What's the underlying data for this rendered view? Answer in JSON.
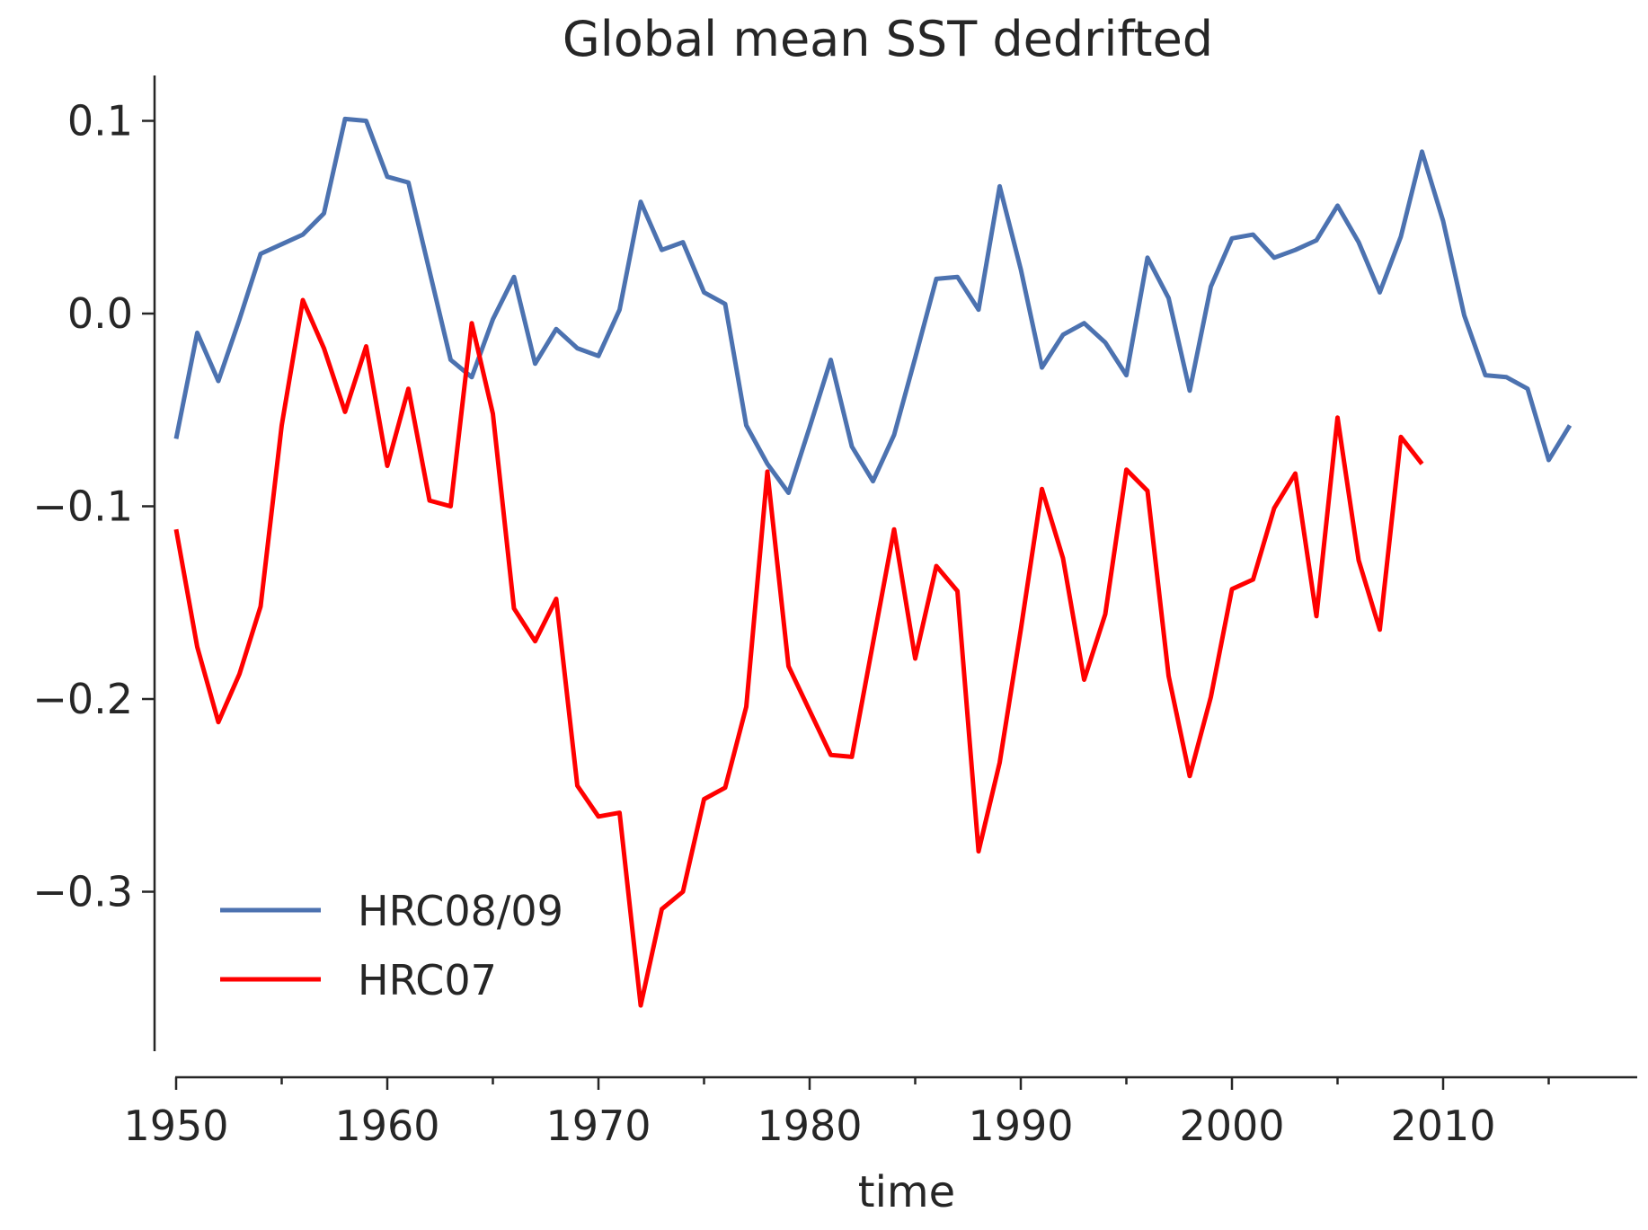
{
  "chart_data": {
    "type": "line",
    "title": "Global mean SST dedrifted",
    "xlabel": "time",
    "ylabel": "",
    "xlim": [
      1949.0,
      2019.0
    ],
    "ylim": [
      -0.38,
      0.125
    ],
    "xticks": [
      1950,
      1960,
      1970,
      1980,
      1990,
      2000,
      2010
    ],
    "xticks_minor": [
      1955,
      1965,
      1975,
      1985,
      1995,
      2005,
      2015
    ],
    "xtick_labels": [
      "1950",
      "1960",
      "1970",
      "1980",
      "1990",
      "2000",
      "2010"
    ],
    "yticks": [
      0.1,
      0.0,
      -0.1,
      -0.2,
      -0.3
    ],
    "ytick_labels": [
      "0.1",
      "0.0",
      "−0.1",
      "−0.2",
      "−0.3"
    ],
    "grid": false,
    "legend_position": "lower-left",
    "series": [
      {
        "name": "HRC08/09",
        "color": "#4c72b0",
        "x": [
          1950,
          1951,
          1952,
          1953,
          1954,
          1955,
          1956,
          1957,
          1958,
          1959,
          1960,
          1961,
          1962,
          1963,
          1964,
          1965,
          1966,
          1967,
          1968,
          1969,
          1970,
          1971,
          1972,
          1973,
          1974,
          1975,
          1976,
          1977,
          1978,
          1979,
          1980,
          1981,
          1982,
          1983,
          1984,
          1985,
          1986,
          1987,
          1988,
          1989,
          1990,
          1991,
          1992,
          1993,
          1994,
          1995,
          1996,
          1997,
          1998,
          1999,
          2000,
          2001,
          2002,
          2003,
          2004,
          2005,
          2006,
          2007,
          2008,
          2009,
          2010,
          2011,
          2012,
          2013,
          2014,
          2015,
          2016
        ],
        "y": [
          -0.065,
          -0.01,
          -0.035,
          -0.003,
          0.031,
          0.036,
          0.041,
          0.052,
          0.101,
          0.1,
          0.071,
          0.068,
          0.022,
          -0.024,
          -0.033,
          -0.003,
          0.019,
          -0.026,
          -0.008,
          -0.018,
          -0.022,
          0.002,
          0.058,
          0.033,
          0.037,
          0.011,
          0.005,
          -0.058,
          -0.078,
          -0.093,
          -0.059,
          -0.024,
          -0.069,
          -0.087,
          -0.063,
          -0.023,
          0.018,
          0.019,
          0.002,
          0.066,
          0.023,
          -0.028,
          -0.011,
          -0.005,
          -0.015,
          -0.032,
          0.029,
          0.008,
          -0.04,
          0.014,
          0.039,
          0.041,
          0.029,
          0.033,
          0.038,
          0.056,
          0.037,
          0.011,
          0.04,
          0.084,
          0.048,
          -0.001,
          -0.032,
          -0.033,
          -0.039,
          -0.076,
          -0.058
        ]
      },
      {
        "name": "HRC07",
        "color": "#ff0000",
        "x": [
          1950,
          1951,
          1952,
          1953,
          1954,
          1955,
          1956,
          1957,
          1958,
          1959,
          1960,
          1961,
          1962,
          1963,
          1964,
          1965,
          1966,
          1967,
          1968,
          1969,
          1970,
          1971,
          1972,
          1973,
          1974,
          1975,
          1976,
          1977,
          1978,
          1979,
          1980,
          1981,
          1982,
          1983,
          1984,
          1985,
          1986,
          1987,
          1988,
          1989,
          1990,
          1991,
          1992,
          1993,
          1994,
          1995,
          1996,
          1997,
          1998,
          1999,
          2000,
          2001,
          2002,
          2003,
          2004,
          2005,
          2006,
          2007,
          2008,
          2009
        ],
        "y": [
          -0.112,
          -0.173,
          -0.212,
          -0.187,
          -0.152,
          -0.058,
          0.007,
          -0.018,
          -0.051,
          -0.017,
          -0.079,
          -0.039,
          -0.097,
          -0.1,
          -0.005,
          -0.052,
          -0.153,
          -0.17,
          -0.148,
          -0.245,
          -0.261,
          -0.259,
          -0.359,
          -0.309,
          -0.3,
          -0.252,
          -0.246,
          -0.204,
          -0.082,
          -0.183,
          -0.206,
          -0.229,
          -0.23,
          -0.171,
          -0.112,
          -0.179,
          -0.131,
          -0.144,
          -0.279,
          -0.233,
          -0.164,
          -0.091,
          -0.127,
          -0.19,
          -0.156,
          -0.081,
          -0.092,
          -0.188,
          -0.24,
          -0.199,
          -0.143,
          -0.138,
          -0.101,
          -0.083,
          -0.157,
          -0.054,
          -0.128,
          -0.164,
          -0.064,
          -0.078
        ]
      }
    ]
  }
}
